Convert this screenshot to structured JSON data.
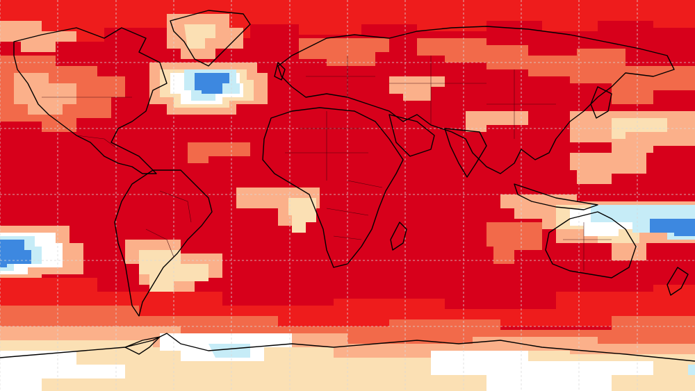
{
  "map": {
    "projection": "equirectangular",
    "graticule": {
      "lon_step_deg": 30,
      "lat_step_deg": 20,
      "style": "dashed",
      "color": "#d9d9d9"
    },
    "palette": {
      "extreme_warm": "#d7001b",
      "strong_warm": "#ee1c1c",
      "warm": "#f26a4a",
      "mild_warm": "#fbb08a",
      "slight_warm": "#fbe0b4",
      "neutral": "#ffffff",
      "slight_cool": "#c6ecf7",
      "mild_cool": "#7cc8ee",
      "cool": "#3d88e0"
    },
    "coastline_color": "#000000",
    "border_color": "#3a0008"
  }
}
